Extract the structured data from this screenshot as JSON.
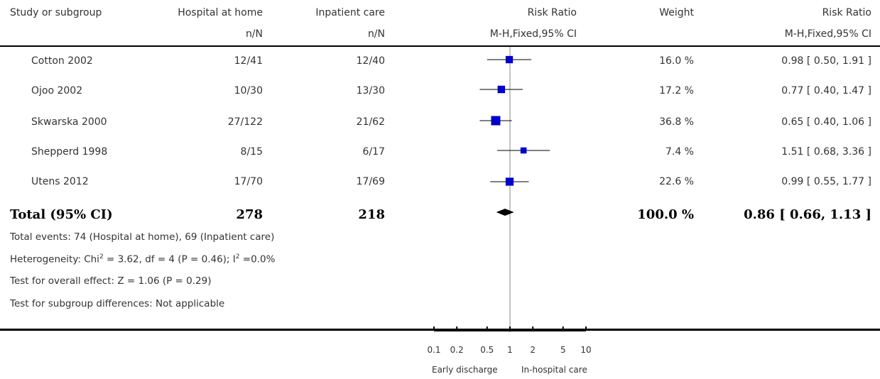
{
  "headers": {
    "study": "Study or subgroup",
    "group1": "Hospital at home",
    "group1_sub": "n/N",
    "group2": "Inpatient care",
    "group2_sub": "n/N",
    "effect": "Risk Ratio",
    "effect_sub": "M-H,Fixed,95% CI",
    "weight": "Weight",
    "effect2": "Risk Ratio",
    "effect2_sub": "M-H,Fixed,95% CI"
  },
  "rows": [
    {
      "study": "Cotton 2002",
      "g1": "12/41",
      "g2": "12/40",
      "weight": "16.0 %",
      "ci": "0.98 [ 0.50, 1.91 ]"
    },
    {
      "study": "Ojoo 2002",
      "g1": "10/30",
      "g2": "13/30",
      "weight": "17.2 %",
      "ci": "0.77 [ 0.40, 1.47 ]"
    },
    {
      "study": "Skwarska 2000",
      "g1": "27/122",
      "g2": "21/62",
      "weight": "36.8 %",
      "ci": "0.65 [ 0.40, 1.06 ]"
    },
    {
      "study": "Shepperd 1998",
      "g1": "8/15",
      "g2": "6/17",
      "weight": "7.4 %",
      "ci": "1.51 [ 0.68, 3.36 ]"
    },
    {
      "study": "Utens 2012",
      "g1": "17/70",
      "g2": "17/69",
      "weight": "22.6 %",
      "ci": "0.99 [ 0.55, 1.77 ]"
    }
  ],
  "total": {
    "label": "Total (95% CI)",
    "g1": "278",
    "g2": "218",
    "weight": "100.0 %",
    "ci": "0.86 [ 0.66, 1.13 ]"
  },
  "notes": {
    "events": "Total events: 74 (Hospital at home), 69 (Inpatient care)",
    "heterogeneity_pre": "Heterogeneity: Chi",
    "heterogeneity_sup1": "2",
    "heterogeneity_mid": " = 3.62, df = 4 (P = 0.46); I",
    "heterogeneity_sup2": "2",
    "heterogeneity_post": " =0.0%",
    "overall": "Test for overall effect: Z = 1.06 (P = 0.29)",
    "subgroup": "Test for subgroup differences: Not applicable"
  },
  "axis": {
    "favours_left": "Early discharge",
    "favours_right": "In-hospital care"
  },
  "colors": {
    "marker": "#0000cc",
    "line": "#000000",
    "ref_line": "#888888"
  },
  "chart_data": {
    "type": "forest",
    "scale": "log",
    "xlim": [
      0.1,
      10
    ],
    "ticks": [
      0.1,
      0.2,
      0.5,
      1,
      2,
      5,
      10
    ],
    "tick_labels": [
      "0.1",
      "0.2",
      "0.5",
      "1",
      "2",
      "5",
      "10"
    ],
    "studies": [
      {
        "name": "Cotton 2002",
        "rr": 0.98,
        "lo": 0.5,
        "hi": 1.91,
        "weight": 16.0
      },
      {
        "name": "Ojoo 2002",
        "rr": 0.77,
        "lo": 0.4,
        "hi": 1.47,
        "weight": 17.2
      },
      {
        "name": "Skwarska 2000",
        "rr": 0.65,
        "lo": 0.4,
        "hi": 1.06,
        "weight": 36.8
      },
      {
        "name": "Shepperd 1998",
        "rr": 1.51,
        "lo": 0.68,
        "hi": 3.36,
        "weight": 7.4
      },
      {
        "name": "Utens 2012",
        "rr": 0.99,
        "lo": 0.55,
        "hi": 1.77,
        "weight": 22.6
      }
    ],
    "pooled": {
      "rr": 0.86,
      "lo": 0.66,
      "hi": 1.13
    }
  }
}
